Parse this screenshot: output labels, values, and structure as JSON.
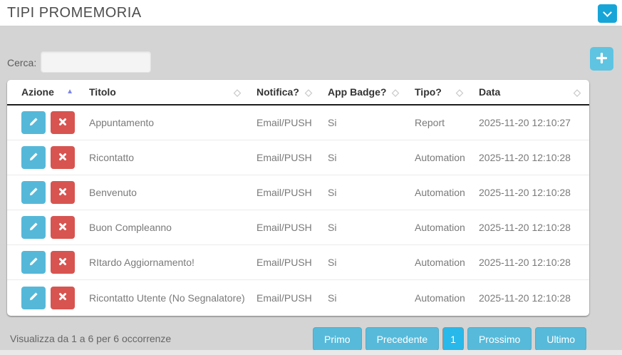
{
  "page": {
    "title": "TIPI PROMEMORIA"
  },
  "toolbar": {
    "search_label": "Cerca:",
    "search_value": "",
    "search_placeholder": ""
  },
  "icons": {
    "sort_both": "◇",
    "sort_asc": "▲"
  },
  "colors": {
    "accent_cyan": "#17a5d8",
    "light_cyan": "#5ec4e1",
    "edit_blue": "#55b8d9",
    "delete_red": "#d85450",
    "pagination_blue": "#57bada",
    "pagination_active": "#28b8e9",
    "sort_active": "#7e85ea"
  },
  "table": {
    "columns": [
      {
        "label": "Azione",
        "sort": "asc"
      },
      {
        "label": "Titolo",
        "sort": "none"
      },
      {
        "label": "Notifica?",
        "sort": "none"
      },
      {
        "label": "App Badge?",
        "sort": "none"
      },
      {
        "label": "Tipo?",
        "sort": "none"
      },
      {
        "label": "Data",
        "sort": "none"
      }
    ],
    "rows": [
      {
        "titolo": "Appuntamento",
        "notifica": "Email/PUSH",
        "app_badge": "Si",
        "tipo": "Report",
        "data": "2025-11-20 12:10:27"
      },
      {
        "titolo": "Ricontatto",
        "notifica": "Email/PUSH",
        "app_badge": "Si",
        "tipo": "Automation",
        "data": "2025-11-20 12:10:28"
      },
      {
        "titolo": "Benvenuto",
        "notifica": "Email/PUSH",
        "app_badge": "Si",
        "tipo": "Automation",
        "data": "2025-11-20 12:10:28"
      },
      {
        "titolo": "Buon Compleanno",
        "notifica": "Email/PUSH",
        "app_badge": "Si",
        "tipo": "Automation",
        "data": "2025-11-20 12:10:28"
      },
      {
        "titolo": "RItardo Aggiornamento!",
        "notifica": "Email/PUSH",
        "app_badge": "Si",
        "tipo": "Automation",
        "data": "2025-11-20 12:10:28"
      },
      {
        "titolo": "Ricontatto Utente (No Segnalatore)",
        "notifica": "Email/PUSH",
        "app_badge": "Si",
        "tipo": "Automation",
        "data": "2025-11-20 12:10:28"
      }
    ]
  },
  "footer": {
    "summary": "Visualizza da 1 a 6 per 6 occorrenze",
    "pagination": [
      {
        "label": "Primo",
        "active": false
      },
      {
        "label": "Precedente",
        "active": false
      },
      {
        "label": "1",
        "active": true
      },
      {
        "label": "Prossimo",
        "active": false
      },
      {
        "label": "Ultimo",
        "active": false
      }
    ]
  }
}
